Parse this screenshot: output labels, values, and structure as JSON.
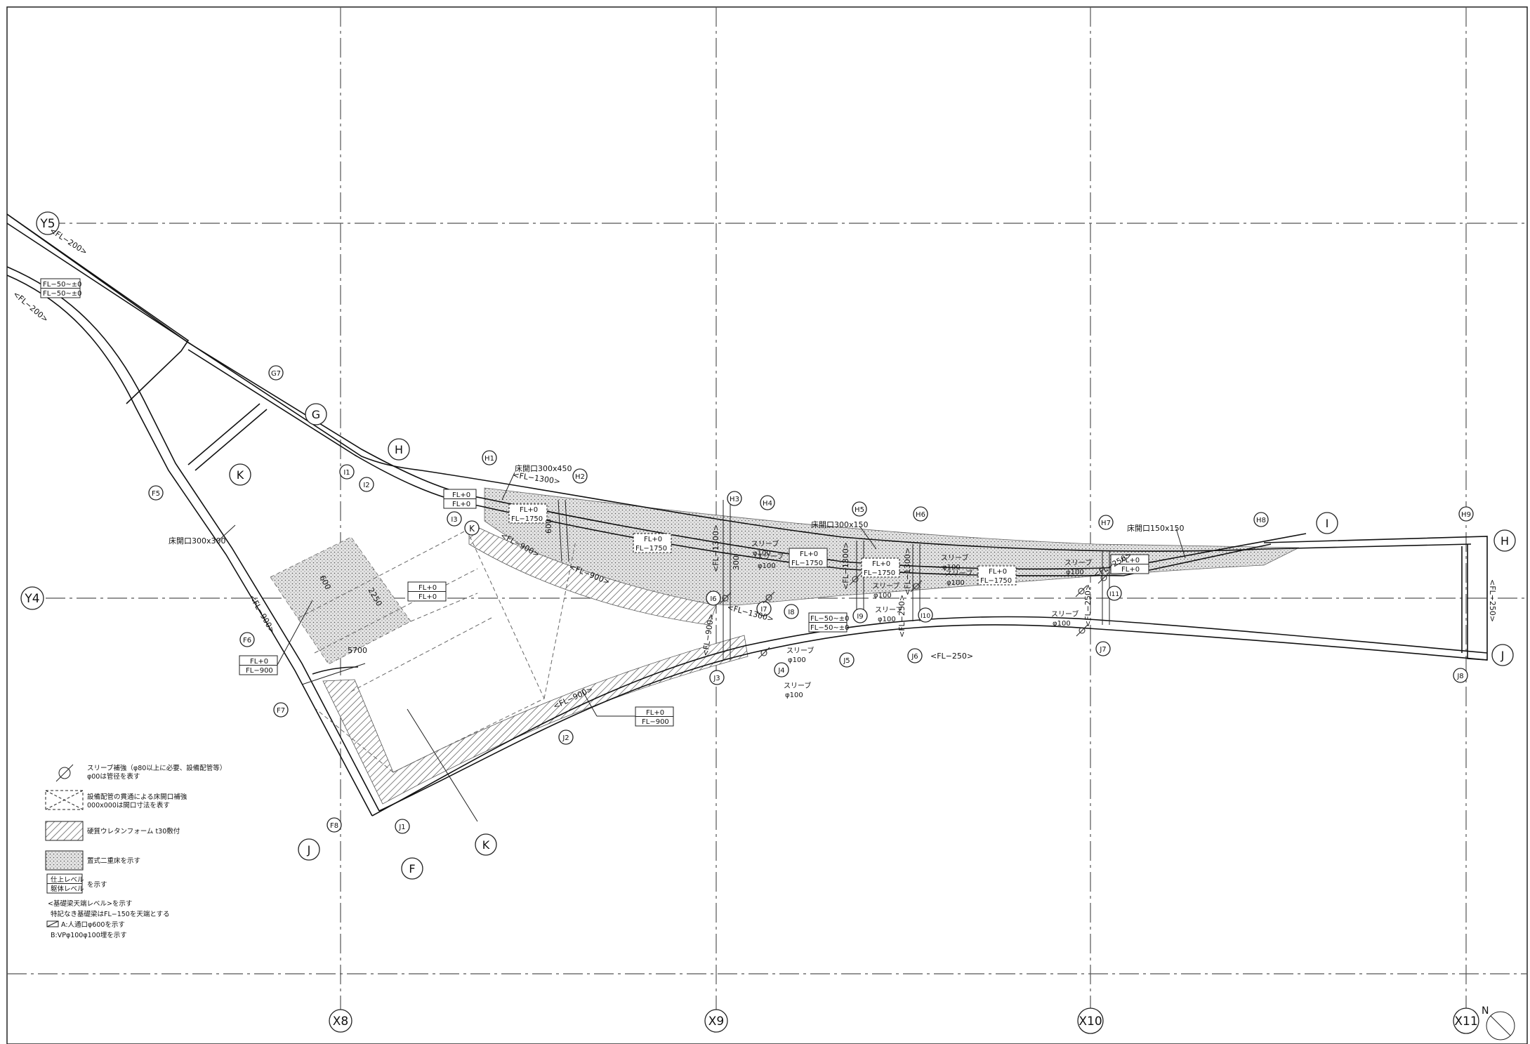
{
  "grid": {
    "x_axes": [
      "X8",
      "X9",
      "X10",
      "X11"
    ],
    "y_axes": [
      "Y5",
      "Y4"
    ]
  },
  "lines": [
    "G",
    "H",
    "H",
    "I",
    "J",
    "J",
    "F",
    "K",
    "K",
    "K"
  ],
  "points": [
    "G7",
    "F5",
    "F6",
    "F7",
    "F8",
    "I1",
    "I2",
    "I3",
    "H1",
    "H2",
    "H3",
    "H4",
    "H5",
    "H6",
    "H7",
    "H8",
    "H9",
    "I6",
    "I7",
    "I8",
    "I9",
    "I10",
    "I11",
    "J1",
    "J2",
    "J3",
    "J4",
    "J5",
    "J6",
    "J7",
    "J8"
  ],
  "levels": {
    "fl_50_a": "FL−50~±0",
    "fl_50_b": "FL−50~±0",
    "fl_200_a": "<FL−200>",
    "fl_200_b": "<FL−200>",
    "fl0_a": "FL+0",
    "fl0_b": "FL+0",
    "fl0_c": "FL+0",
    "fl0_d": "FL+0",
    "fl0_e": "FL+0",
    "fl0_f": "FL+0",
    "fl0_g": "FL+0",
    "fl0_h": "FL+0",
    "fl0_i": "FL+0",
    "fl0_j": "FL+0",
    "fl0_k": "FL+0",
    "fl0_l": "FL+0",
    "fl0_m": "FL+0",
    "fl1750_a": "FL−1750",
    "fl1750_b": "FL−1750",
    "fl1750_c": "FL−1750",
    "fl1750_d": "FL−1750",
    "fl1750_e": "FL−1750",
    "fl900_a": "FL−900",
    "fl900_b": "FL−900",
    "fl1300": "<FL−1300>",
    "fl900_c": "<FL−900>",
    "fl900_d": "<FL−900>",
    "fl900_e": "<FL−900>",
    "fl900_f": "<FL−900>",
    "fl1300_v1": "<FL−1300>",
    "fl1300_v2": "<FL−1300>",
    "fl1300_v3": "<FL−1300>",
    "fl250_a": "<FL−250>",
    "fl250_b": "<FL−250>",
    "fl250_c": "<FL−250>",
    "fl250_d": "<FL−250>",
    "fl250_e": "<FL−250>",
    "fl50_c": "FL−50~±0",
    "fl50_d": "FL−50~±0",
    "fl1300_d": "<FL−1300>",
    "fl900_g": "<FL−900>"
  },
  "callouts": {
    "opening_300x450": "床開口300x450",
    "opening_300x300": "床開口300x300",
    "opening_300x150": "床開口300x150",
    "opening_150x150": "床開口150x150",
    "sleeve": "スリーブ",
    "phi100": "φ100"
  },
  "dims": {
    "d600_a": "600",
    "d600_b": "600",
    "d5700": "5700",
    "d2250": "2250",
    "d300": "300"
  },
  "legend": {
    "sleeve": "スリーブ補強（φ80以上に必要、設備配管等）",
    "sleeve_sub": "φ00は管径を表す",
    "opening": "設備配管の貫通による床開口補強",
    "opening_sub": "000x000は開口寸法を表す",
    "hatch": "硬質ウレタンフォーム t30敷付",
    "dot": "置式二重床を示す",
    "level_top": "仕上レベル",
    "level_bottom": "躯体レベル",
    "level_note": "を示す",
    "note1": "<基礎梁天端レベル>を示す",
    "note2": "特記なき基礎梁はFL−150を天端とする",
    "note3": "A:人通口φ600を示す",
    "note4": "B:VPφ100φ100埋を示す",
    "north": "N"
  },
  "colors": {
    "line": "#111111",
    "grid": "#555555",
    "dot_fill": "#d8d8d8",
    "hatch": "#444444"
  }
}
